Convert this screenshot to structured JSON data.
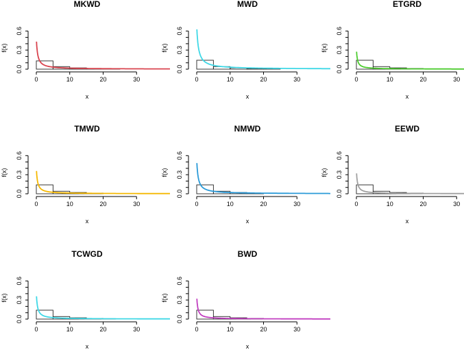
{
  "chart_data": [
    {
      "type": "line",
      "title": "MKWD",
      "xlabel": "x",
      "ylabel": "f(x)",
      "xticks": [
        "0",
        "10",
        "20",
        "30"
      ],
      "yticks": [
        "0.0",
        "0.3",
        "0.6"
      ],
      "xlim": [
        0,
        40
      ],
      "ylim": [
        0,
        0.7
      ],
      "color": "#d9434e",
      "density_peak": 0.5,
      "density_decay": 0.4,
      "histogram": {
        "bins": [
          [
            0,
            5
          ],
          [
            5,
            10
          ],
          [
            10,
            15
          ],
          [
            15,
            20
          ],
          [
            20,
            25
          ]
        ],
        "density": [
          0.13,
          0.04,
          0.02,
          0.01,
          0.005
        ]
      }
    },
    {
      "type": "line",
      "title": "MWD",
      "xlabel": "x",
      "ylabel": "f(x)",
      "xticks": [
        "0",
        "10",
        "20",
        "30"
      ],
      "yticks": [
        "0.0",
        "0.3",
        "0.6"
      ],
      "xlim": [
        0,
        40
      ],
      "ylim": [
        0,
        0.7
      ],
      "color": "#3fd8e6",
      "density_peak": 0.7,
      "density_decay": 0.55,
      "histogram": {
        "bins": [
          [
            0,
            5
          ],
          [
            5,
            10
          ],
          [
            10,
            15
          ],
          [
            15,
            20
          ],
          [
            20,
            25
          ]
        ],
        "density": [
          0.14,
          0.04,
          0.02,
          0.01,
          0.005
        ]
      }
    },
    {
      "type": "line",
      "title": "ETGRD",
      "xlabel": "x",
      "ylabel": "f(x)",
      "xticks": [
        "0",
        "10",
        "20",
        "30"
      ],
      "yticks": [
        "0.0",
        "0.3",
        "0.6"
      ],
      "xlim": [
        0,
        40
      ],
      "ylim": [
        0,
        0.7
      ],
      "color": "#4ccc2e",
      "density_peak": 0.33,
      "density_decay": 0.3,
      "histogram": {
        "bins": [
          [
            0,
            5
          ],
          [
            5,
            10
          ],
          [
            10,
            15
          ],
          [
            15,
            20
          ],
          [
            20,
            25
          ]
        ],
        "density": [
          0.14,
          0.04,
          0.02,
          0.01,
          0.005
        ]
      }
    },
    {
      "type": "line",
      "title": "TMWD",
      "xlabel": "x",
      "ylabel": "f(x)",
      "xticks": [
        "0",
        "10",
        "20",
        "30"
      ],
      "yticks": [
        "0.0",
        "0.3",
        "0.6"
      ],
      "xlim": [
        0,
        40
      ],
      "ylim": [
        0,
        0.7
      ],
      "color": "#f5b800",
      "density_peak": 0.42,
      "density_decay": 0.35,
      "histogram": {
        "bins": [
          [
            0,
            5
          ],
          [
            5,
            10
          ],
          [
            10,
            15
          ],
          [
            15,
            20
          ]
        ],
        "density": [
          0.14,
          0.04,
          0.02,
          0.01
        ]
      }
    },
    {
      "type": "line",
      "title": "NMWD",
      "xlabel": "x",
      "ylabel": "f(x)",
      "xticks": [
        "0",
        "10",
        "20",
        "30"
      ],
      "yticks": [
        "0.0",
        "0.3",
        "0.6"
      ],
      "xlim": [
        0,
        40
      ],
      "ylim": [
        0,
        0.7
      ],
      "color": "#2a9ad8",
      "density_peak": 0.55,
      "density_decay": 0.45,
      "histogram": {
        "bins": [
          [
            0,
            5
          ],
          [
            5,
            10
          ],
          [
            10,
            15
          ],
          [
            15,
            20
          ]
        ],
        "density": [
          0.14,
          0.04,
          0.02,
          0.01
        ]
      }
    },
    {
      "type": "line",
      "title": "EEWD",
      "xlabel": "x",
      "ylabel": "f(x)",
      "xticks": [
        "0",
        "10",
        "20",
        "30"
      ],
      "yticks": [
        "0.0",
        "0.3",
        "0.6"
      ],
      "xlim": [
        0,
        40
      ],
      "ylim": [
        0,
        0.7
      ],
      "color": "#a0a0a0",
      "density_peak": 0.38,
      "density_decay": 0.32,
      "histogram": {
        "bins": [
          [
            0,
            5
          ],
          [
            5,
            10
          ],
          [
            10,
            15
          ],
          [
            15,
            20
          ]
        ],
        "density": [
          0.14,
          0.04,
          0.02,
          0.01
        ]
      }
    },
    {
      "type": "line",
      "title": "TCWGD",
      "xlabel": "x",
      "ylabel": "f(x)",
      "xticks": [
        "0",
        "10",
        "20",
        "30"
      ],
      "yticks": [
        "0.0",
        "0.3",
        "0.6"
      ],
      "xlim": [
        0,
        40
      ],
      "ylim": [
        0,
        0.7
      ],
      "color": "#3fd8e6",
      "density_peak": 0.42,
      "density_decay": 0.35,
      "histogram": {
        "bins": [
          [
            0,
            5
          ],
          [
            5,
            10
          ],
          [
            10,
            15
          ],
          [
            15,
            20
          ],
          [
            20,
            25
          ]
        ],
        "density": [
          0.14,
          0.04,
          0.02,
          0.01,
          0.005
        ]
      }
    },
    {
      "type": "line",
      "title": "BWD",
      "xlabel": "x",
      "ylabel": "f(x)",
      "xticks": [
        "0",
        "10",
        "20",
        "30"
      ],
      "yticks": [
        "0.0",
        "0.3",
        "0.6"
      ],
      "xlim": [
        0,
        40
      ],
      "ylim": [
        0,
        0.7
      ],
      "color": "#c13fc0",
      "density_peak": 0.38,
      "density_decay": 0.32,
      "histogram": {
        "bins": [
          [
            0,
            5
          ],
          [
            5,
            10
          ],
          [
            10,
            15
          ],
          [
            15,
            20
          ],
          [
            20,
            25
          ]
        ],
        "density": [
          0.14,
          0.04,
          0.02,
          0.01,
          0.005
        ]
      }
    }
  ]
}
